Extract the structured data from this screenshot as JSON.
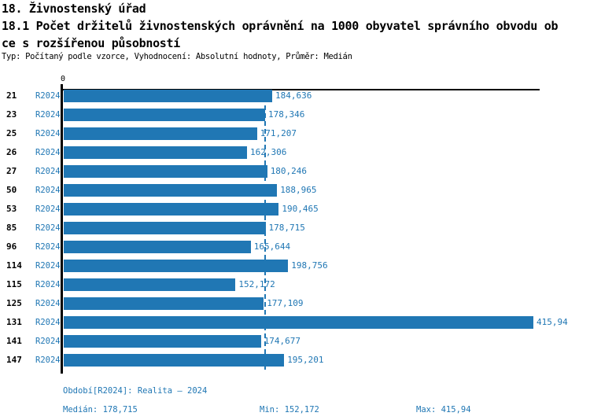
{
  "header": {
    "title_line1": "18. Živnostenský úřad",
    "title_line2": "18.1 Počet držitelů živnostenských oprávnění na 1000 obyvatel správního obvodu ob",
    "title_line3": "ce s rozšířenou působností",
    "meta_line": "Typ: Počítaný podle vzorce, Vyhodnocení: Absolutní hodnoty, Průměr: Medián"
  },
  "chart_data": {
    "type": "bar",
    "orientation": "horizontal",
    "title": "18.1 Počet držitelů živnostenských oprávnění na 1000 obyvatel správního obvodu obce s rozšířenou působností",
    "series_label": "R2024",
    "categories": [
      "21",
      "23",
      "25",
      "26",
      "27",
      "50",
      "53",
      "85",
      "96",
      "114",
      "115",
      "125",
      "131",
      "141",
      "147"
    ],
    "values": [
      184.636,
      178.346,
      171.207,
      162.306,
      180.246,
      188.965,
      190.465,
      178.715,
      165.644,
      198.756,
      152.172,
      177.109,
      415.94,
      174.677,
      195.201
    ],
    "value_labels": [
      "184,636",
      "178,346",
      "171,207",
      "162,306",
      "180,246",
      "188,965",
      "190,465",
      "178,715",
      "165,644",
      "198,756",
      "152,172",
      "177,109",
      "415,94",
      "174,677",
      "195,201"
    ],
    "axis": {
      "tick_label": "0",
      "min": 0,
      "max": 421.5,
      "median_value": 178.715
    },
    "bar_color": "#2077B4",
    "grid": false,
    "legend": false
  },
  "footer": {
    "period_line": "Období[R2024]: Realita – 2024",
    "median_text": "Medián: 178,715",
    "min_text": "Min: 152,172",
    "max_text": "Max: 415,94"
  },
  "colors": {
    "accent": "#2077B4",
    "text": "#000000",
    "background": "#FFFFFF"
  }
}
